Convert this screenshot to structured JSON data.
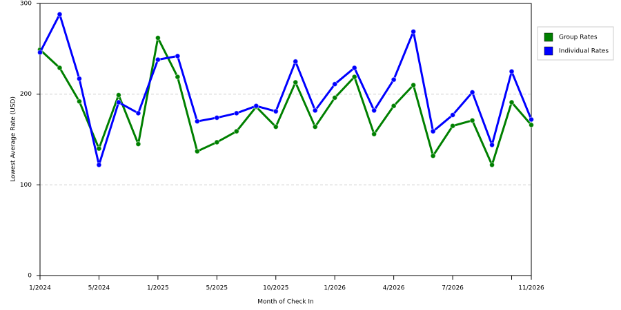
{
  "chart_data": {
    "type": "line",
    "x_label": "Month of Check In",
    "y_label": "Lowest Average Rate (USD)",
    "categories": [
      "1/2024",
      null,
      null,
      "5/2024",
      null,
      null,
      "1/2025",
      null,
      null,
      "5/2025",
      null,
      null,
      "10/2025",
      null,
      null,
      "1/2026",
      null,
      null,
      "4/2026",
      null,
      null,
      "7/2026",
      null,
      null,
      null,
      "11/2026"
    ],
    "series": [
      {
        "name": "Group Rates",
        "color": "#008000",
        "values": [
          249,
          229,
          192,
          140,
          199,
          145,
          262,
          219,
          137,
          147,
          159,
          186,
          164,
          213,
          164,
          196,
          219,
          156,
          187,
          210,
          132,
          165,
          171,
          122,
          191,
          166
        ]
      },
      {
        "name": "Individual Rates",
        "color": "#0000ff",
        "values": [
          246,
          288,
          217,
          122,
          191,
          179,
          238,
          242,
          170,
          174,
          179,
          187,
          181,
          236,
          182,
          211,
          229,
          182,
          216,
          269,
          159,
          177,
          202,
          144,
          225,
          172
        ]
      }
    ],
    "ylim": [
      0,
      300
    ],
    "yticks": [
      0,
      100,
      200,
      300
    ],
    "grid": true,
    "legend": "right"
  }
}
